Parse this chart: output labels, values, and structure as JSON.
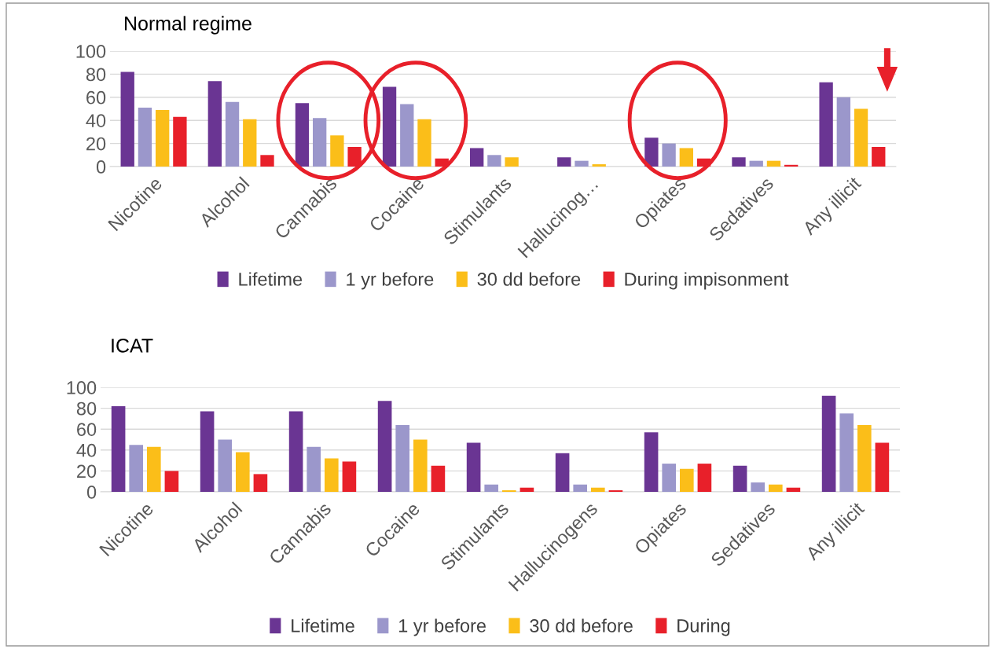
{
  "chart_data": [
    {
      "type": "bar",
      "title": "Normal regime",
      "categories": [
        "Nicotine",
        "Alcohol",
        "Cannabis",
        "Cocaine",
        "Stimulants",
        "Hallucinog…",
        "Opiates",
        "Sedatives",
        "Any illicit"
      ],
      "series": [
        {
          "name": "Lifetime",
          "color": "#6a3593",
          "values": [
            82,
            74,
            55,
            69,
            16,
            8,
            25,
            8,
            73
          ]
        },
        {
          "name": "1 yr before",
          "color": "#9b97cb",
          "values": [
            51,
            56,
            42,
            54,
            10,
            5,
            20,
            5,
            60
          ]
        },
        {
          "name": "30 dd before",
          "color": "#fbbe19",
          "values": [
            49,
            41,
            27,
            41,
            8,
            2,
            16,
            5,
            50
          ]
        },
        {
          "name": "During impisonment",
          "color": "#e8202a",
          "values": [
            43,
            10,
            17,
            7,
            null,
            null,
            7,
            1.5,
            17
          ]
        }
      ],
      "ylim": [
        0,
        100
      ],
      "yticks": [
        0,
        20,
        40,
        60,
        80,
        100
      ],
      "grid": "y",
      "legend": "bottom"
    },
    {
      "type": "bar",
      "title": "ICAT",
      "categories": [
        "Nicotine",
        "Alcohol",
        "Cannabis",
        "Cocaine",
        "Stimulants",
        "Hallucinogens",
        "Opiates",
        "Sedatives",
        "Any illicit"
      ],
      "series": [
        {
          "name": "Lifetime",
          "color": "#6a3593",
          "values": [
            82,
            77,
            77,
            87,
            47,
            37,
            57,
            25,
            92
          ]
        },
        {
          "name": "1 yr before",
          "color": "#9b97cb",
          "values": [
            45,
            50,
            43,
            64,
            7,
            7,
            27,
            9,
            75
          ]
        },
        {
          "name": "30 dd before",
          "color": "#fbbe19",
          "values": [
            43,
            38,
            32,
            50,
            1.5,
            4,
            22,
            7,
            64
          ]
        },
        {
          "name": "During",
          "color": "#e8202a",
          "values": [
            20,
            17,
            29,
            25,
            4,
            1.5,
            27,
            4,
            47
          ]
        }
      ],
      "ylim": [
        0,
        100
      ],
      "yticks": [
        0,
        20,
        40,
        60,
        80,
        100
      ],
      "grid": "y",
      "legend": "bottom"
    }
  ]
}
